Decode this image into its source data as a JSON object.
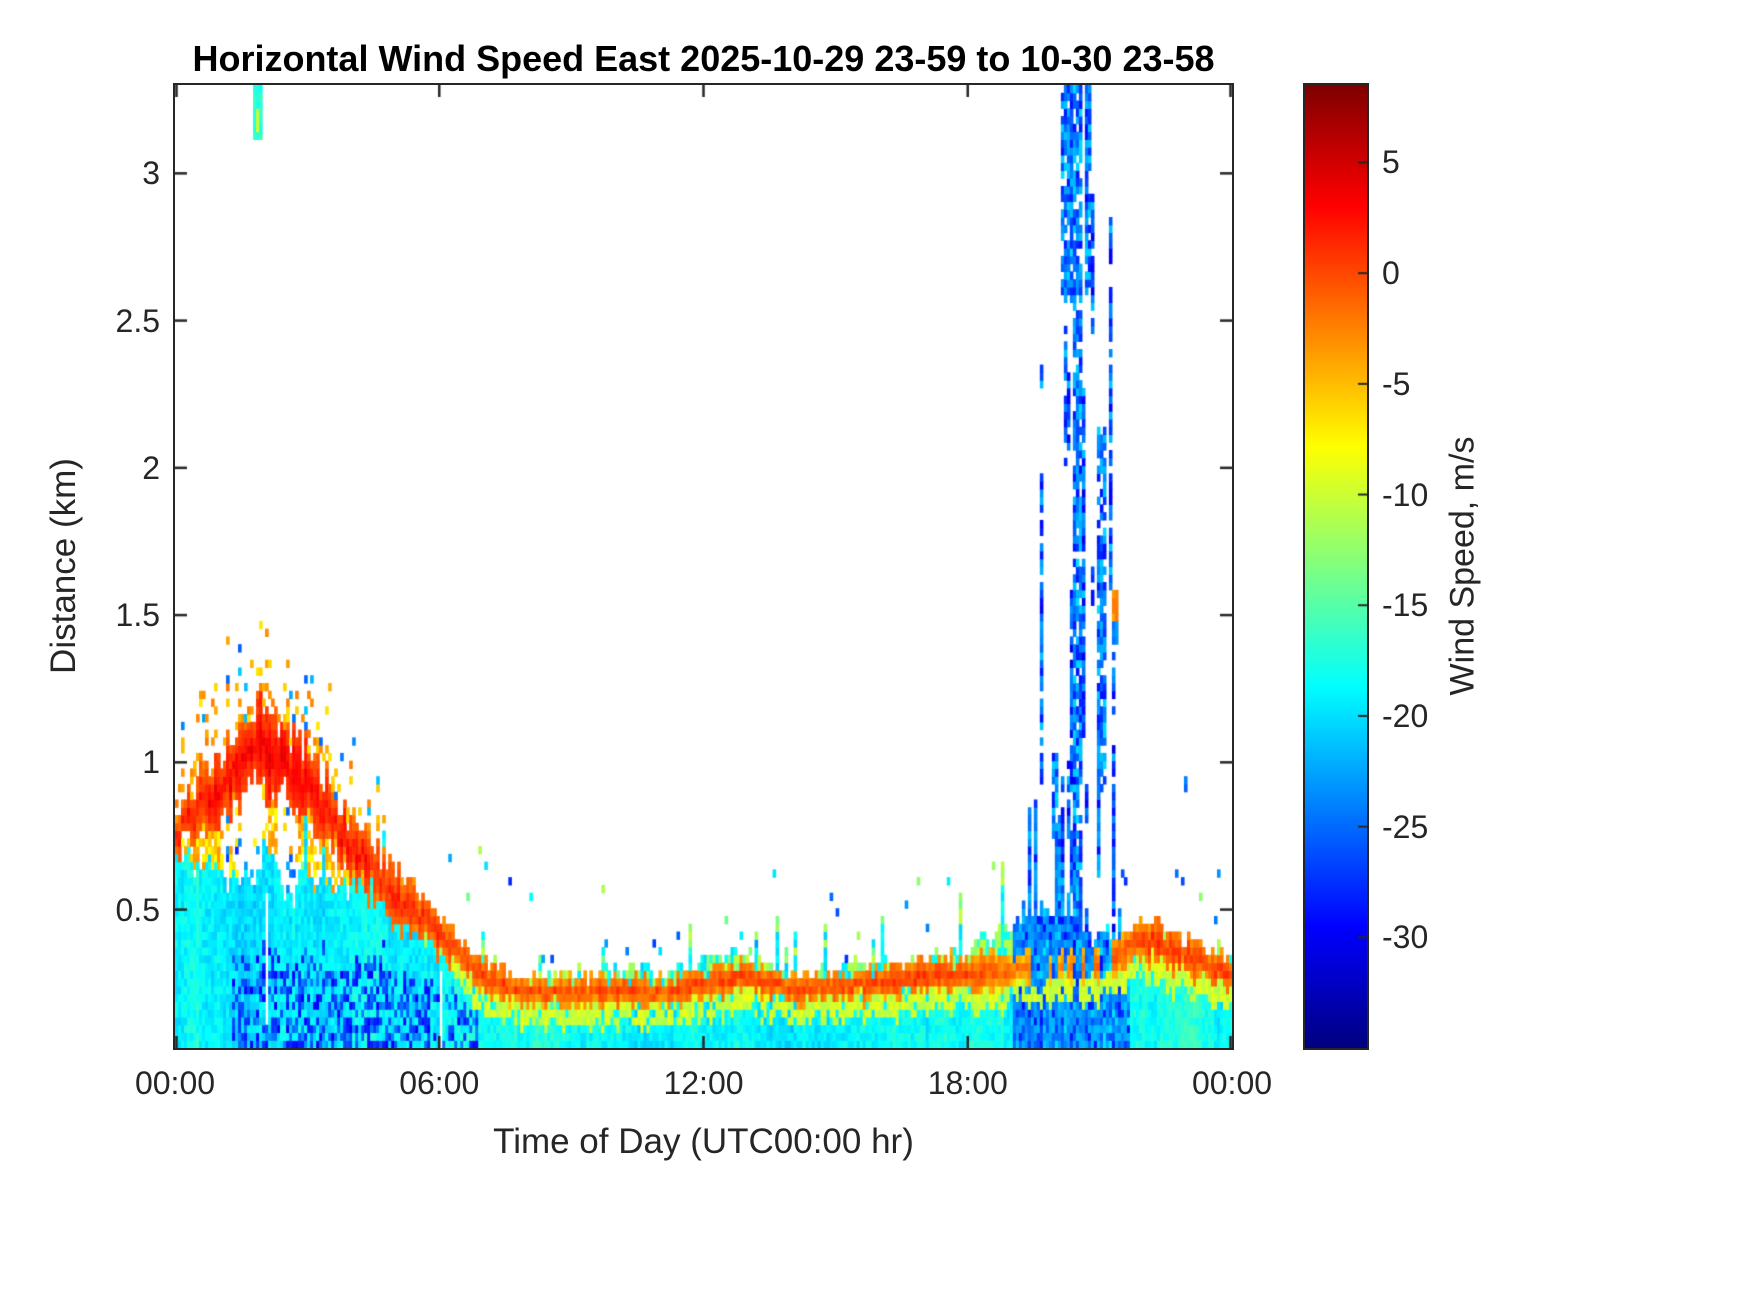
{
  "title": "Horizontal Wind Speed East 2025-10-29 23-59 to 10-30 23-58",
  "axes": {
    "xlabel": "Time of Day (UTC00:00 hr)",
    "ylabel": "Distance (km)",
    "x_ticks": [
      {
        "hour": 0,
        "label": "00:00"
      },
      {
        "hour": 6,
        "label": "06:00"
      },
      {
        "hour": 12,
        "label": "12:00"
      },
      {
        "hour": 18,
        "label": "18:00"
      },
      {
        "hour": 24,
        "label": "00:00"
      }
    ],
    "y_ticks": [
      {
        "km": 0.5,
        "label": "0.5"
      },
      {
        "km": 1,
        "label": "1"
      },
      {
        "km": 1.5,
        "label": "1.5"
      },
      {
        "km": 2,
        "label": "2"
      },
      {
        "km": 2.5,
        "label": "2.5"
      },
      {
        "km": 3,
        "label": "3"
      }
    ]
  },
  "colorbar": {
    "label": "Wind Speed, m/s",
    "colormap": "jet",
    "ticks": [
      {
        "value": 5,
        "label": "5"
      },
      {
        "value": 0,
        "label": "0"
      },
      {
        "value": -5,
        "label": "-5"
      },
      {
        "value": -10,
        "label": "-10"
      },
      {
        "value": -15,
        "label": "-15"
      },
      {
        "value": -20,
        "label": "-20"
      },
      {
        "value": -25,
        "label": "-25"
      },
      {
        "value": -30,
        "label": "-30"
      }
    ]
  },
  "chart_data": {
    "type": "heatmap",
    "x_unit": "hour_of_day_utc",
    "y_unit": "km",
    "x_range": [
      0,
      24
    ],
    "y_range": [
      0.03,
      3.3
    ],
    "color_axis_ms": [
      -35,
      8.5
    ],
    "colormap": "jet",
    "hours": [
      0,
      1,
      2,
      3,
      4,
      5,
      6,
      7,
      8,
      9,
      10,
      11,
      12,
      13,
      14,
      15,
      16,
      17,
      18,
      19,
      20,
      21,
      22,
      23,
      24
    ],
    "boundary_layer_top_km": [
      0.66,
      0.64,
      0.61,
      0.58,
      0.55,
      0.48,
      0.4,
      0.28,
      0.26,
      0.27,
      0.3,
      0.28,
      0.33,
      0.33,
      0.28,
      0.3,
      0.3,
      0.34,
      0.33,
      0.42,
      0.5,
      0.38,
      0.38,
      0.35,
      0.33
    ],
    "boundary_layer_speed_ms": -19,
    "deep_mix_speed_ms": -27,
    "jet_center_km": [
      0.76,
      0.92,
      1.05,
      0.92,
      0.72,
      0.55,
      0.42,
      0.27,
      0.22,
      0.22,
      0.23,
      0.22,
      0.25,
      0.27,
      0.23,
      0.24,
      0.25,
      0.28,
      0.28,
      0.3,
      0.3,
      0.32,
      0.4,
      0.34,
      0.28
    ],
    "jet_halfwidth_km": [
      0.07,
      0.1,
      0.12,
      0.11,
      0.09,
      0.08,
      0.06,
      0.05,
      0.04,
      0.04,
      0.04,
      0.04,
      0.045,
      0.045,
      0.04,
      0.04,
      0.045,
      0.05,
      0.05,
      0.05,
      0.04,
      0.05,
      0.06,
      0.05,
      0.05
    ],
    "jet_peak_speed_ms": [
      2,
      3,
      4,
      3.5,
      2.5,
      2,
      1,
      0.5,
      0,
      0,
      0.5,
      0,
      0.5,
      1,
      0,
      0.5,
      0.5,
      1,
      0.5,
      -1,
      -2,
      -1,
      1,
      1,
      0.5
    ],
    "evening_column": {
      "start_hr": 19.05,
      "end_hr": 21.65,
      "peak_hr": 20.4,
      "sigma_hr": 0.6,
      "max_top_km": 3.3,
      "speed_range_ms": [
        -32,
        -21
      ]
    },
    "evening_streaks": [
      {
        "hr0": 20.42,
        "hr1": 20.62,
        "km0": 0.1,
        "km1": 3.3
      },
      {
        "hr0": 20.12,
        "hr1": 20.4,
        "km0": 2.55,
        "km1": 3.3
      },
      {
        "hr0": 20.66,
        "hr1": 20.78,
        "km0": 2.6,
        "km1": 3.3
      },
      {
        "hr0": 20.95,
        "hr1": 21.12,
        "km0": 0.9,
        "km1": 2.15
      },
      {
        "hr0": 19.93,
        "hr1": 20.02,
        "km0": 0.75,
        "km1": 1.02
      }
    ],
    "isolated_features": [
      {
        "hr": 1.87,
        "km": 3.22,
        "w_hr": 0.1,
        "h_km": 0.16,
        "ms": -17
      },
      {
        "hr": 1.88,
        "km": 3.18,
        "w_hr": 0.05,
        "h_km": 0.04,
        "ms": -10
      },
      {
        "hr": 21.35,
        "km": 1.52,
        "w_hr": 0.06,
        "h_km": 0.11,
        "ms": -3
      },
      {
        "hr": 21.35,
        "km": 1.44,
        "w_hr": 0.04,
        "h_km": 0.03,
        "ms": -24
      },
      {
        "hr": 22.95,
        "km": 0.93,
        "w_hr": 0.05,
        "h_km": 0.03,
        "ms": -25
      }
    ],
    "data_gaps": [
      {
        "hr0": 2.04,
        "hr1": 2.1,
        "km0": 0.1,
        "km1": 0.55
      },
      {
        "hr0": 6.0,
        "hr1": 6.08,
        "km0": 0.0,
        "km1": 0.3
      }
    ]
  }
}
